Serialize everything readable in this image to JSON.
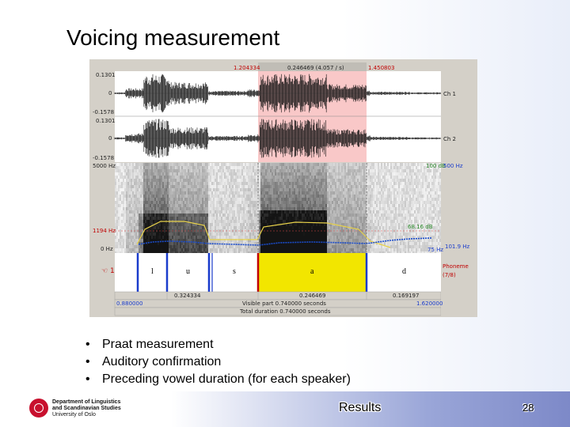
{
  "slide": {
    "title": "Voicing measurement",
    "bullets": [
      "Praat measurement",
      "Auditory confirmation",
      "Preceding vowel duration (for each speaker)"
    ],
    "footer": {
      "dept_line1": "Department of Linguistics",
      "dept_line2": "and Scandinavian Studies",
      "dept_line3": "University of Oslo",
      "results": "Results",
      "page_number": "28"
    }
  },
  "praat": {
    "selection_start": "1.204334",
    "selection_info": "0.246469 (4.057 / s)",
    "selection_end": "1.450803",
    "wave_max": "0.1301",
    "wave_zero": "0",
    "wave_min": "-0.1578",
    "ch1_label": "Ch 1",
    "ch2_label": "Ch 2",
    "freq_top": "5000 Hz",
    "freq_mid": "1194 Hz",
    "freq_bottom": "0 Hz",
    "intensity_top": "100 dB",
    "pitch_top": "500 Hz",
    "intensity_val": "68.16 dB",
    "pitch_val": "101.9 Hz",
    "pitch_bottom": "75 Hz",
    "tier_label": "Phoneme",
    "tier_count": "(7/8)",
    "tier_number": "1",
    "phonemes": [
      "l",
      "u",
      "s",
      "a",
      "d"
    ],
    "interval_left": "0.324334",
    "interval_sel": "0.246469",
    "interval_right": "0.169197",
    "window_start": "0.880000",
    "visible_part": "Visible part 0.740000 seconds",
    "window_end": "1.620000",
    "total_duration": "Total duration 0.740000 seconds"
  }
}
